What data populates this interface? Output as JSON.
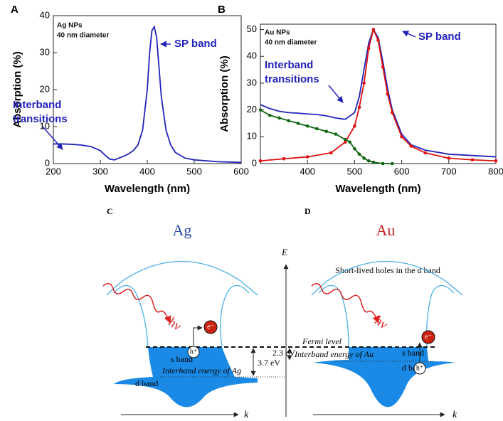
{
  "chart_data": [
    {
      "type": "line",
      "panel": "A",
      "xlabel": "Wavelength (nm)",
      "ylabel": "Absorption (%)",
      "annotations": [
        "Ag NPs",
        "40 nm diameter",
        "SP band",
        "Interband",
        "transitions"
      ],
      "xlim": [
        200,
        600
      ],
      "ylim": [
        0,
        40
      ],
      "xticks": [
        200,
        300,
        400,
        500,
        600
      ],
      "yticks": [
        0,
        10,
        20,
        30,
        40
      ],
      "series": [
        {
          "color": "#2222bb",
          "x": [
            200,
            220,
            240,
            260,
            280,
            300,
            310,
            320,
            330,
            340,
            350,
            360,
            370,
            380,
            390,
            400,
            405,
            410,
            415,
            420,
            425,
            430,
            440,
            450,
            460,
            480,
            500,
            550,
            600
          ],
          "values": [
            5.3,
            5.3,
            5.2,
            5.0,
            4.6,
            3.5,
            2.3,
            1.2,
            1.0,
            1.5,
            2.0,
            2.6,
            3.5,
            5.0,
            9,
            20,
            30,
            36,
            37,
            34,
            26,
            18,
            9,
            5,
            3,
            1.5,
            1,
            0.5,
            0.3
          ]
        }
      ]
    },
    {
      "type": "line",
      "panel": "B",
      "xlabel": "Wavelength (nm)",
      "ylabel": "Absorption (%)",
      "annotations": [
        "Au NPs",
        "40 nm diameter",
        "SP band",
        "Interband",
        "transitions"
      ],
      "xlim": [
        300,
        800
      ],
      "ylim": [
        0,
        52
      ],
      "xticks": [
        400,
        500,
        600,
        700,
        800
      ],
      "yticks": [
        0,
        10,
        20,
        30,
        40,
        50
      ],
      "series": [
        {
          "color": "#2222bb",
          "markers": false,
          "x": [
            300,
            320,
            340,
            360,
            380,
            400,
            420,
            440,
            460,
            480,
            500,
            510,
            520,
            530,
            540,
            550,
            560,
            570,
            580,
            600,
            620,
            650,
            700,
            750,
            800
          ],
          "values": [
            22,
            20.5,
            19.5,
            19,
            18.8,
            18.5,
            18.3,
            17.8,
            17,
            16.5,
            19,
            25,
            35,
            45,
            50,
            47,
            38,
            28,
            20,
            11,
            7,
            5,
            3.5,
            3,
            2.5
          ]
        },
        {
          "color": "#dd1111",
          "markers": true,
          "x": [
            300,
            350,
            400,
            450,
            480,
            500,
            510,
            520,
            530,
            540,
            550,
            560,
            570,
            580,
            600,
            620,
            650,
            700,
            750,
            800
          ],
          "values": [
            1,
            1.8,
            2.5,
            4,
            8,
            14,
            21,
            30,
            43,
            50,
            46,
            36,
            26,
            19,
            10,
            6.5,
            4,
            2,
            1.4,
            1
          ]
        },
        {
          "color": "#116611",
          "markers": true,
          "x": [
            300,
            320,
            340,
            360,
            380,
            400,
            420,
            440,
            460,
            480,
            490,
            500,
            510,
            520,
            530,
            540,
            560,
            580
          ],
          "values": [
            20,
            18,
            17,
            16,
            15,
            14,
            13,
            12,
            11,
            9,
            8,
            5.5,
            3.5,
            2,
            1,
            0.5,
            0,
            0
          ]
        }
      ]
    }
  ],
  "diagram": {
    "panel_c": "C",
    "panel_d": "D",
    "title_ag": "Ag",
    "title_au": "Au",
    "energy_axis": "E",
    "note": "Short-lived holes in the d band",
    "photon_ag": "hν",
    "photon_au": "hν",
    "electron_ag": "e⁻",
    "electron_au": "e⁻",
    "hole_ag": "h⁺",
    "hole_au": "h⁺",
    "fermi": "Fermi level",
    "s_band_ag": "s band",
    "d_band_ag": "d band",
    "s_band_au": "s band",
    "d_band_au": "d band",
    "gap_ag": "3.7 eV",
    "gap_au": "2.3 eV",
    "interband_ag": "Interband energy of Ag",
    "interband_au": "Interband energy of Au",
    "k_ag": "k",
    "k_au": "k"
  }
}
